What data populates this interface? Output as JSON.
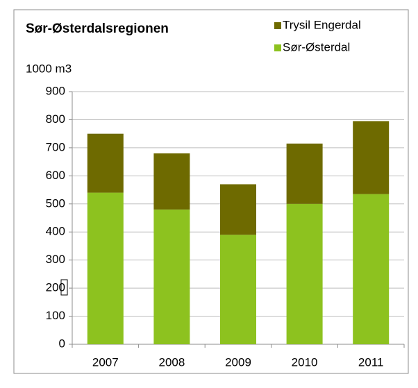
{
  "chart_data": {
    "type": "stacked_bar",
    "title": "Sør-Østerdalsregionen",
    "y_label": "1000 m3",
    "categories": [
      "2007",
      "2008",
      "2009",
      "2010",
      "2011"
    ],
    "series": [
      {
        "name": "Sør-Østerdal",
        "color": "#8dc21f",
        "values": [
          540,
          480,
          390,
          500,
          535
        ]
      },
      {
        "name": "Trysil Engerdal",
        "color": "#6e6a00",
        "values": [
          210,
          200,
          180,
          215,
          260
        ]
      }
    ],
    "ylim": [
      0,
      900
    ],
    "yticks": [
      0,
      100,
      200,
      300,
      400,
      500,
      600,
      700,
      800,
      900
    ],
    "grid": true
  }
}
